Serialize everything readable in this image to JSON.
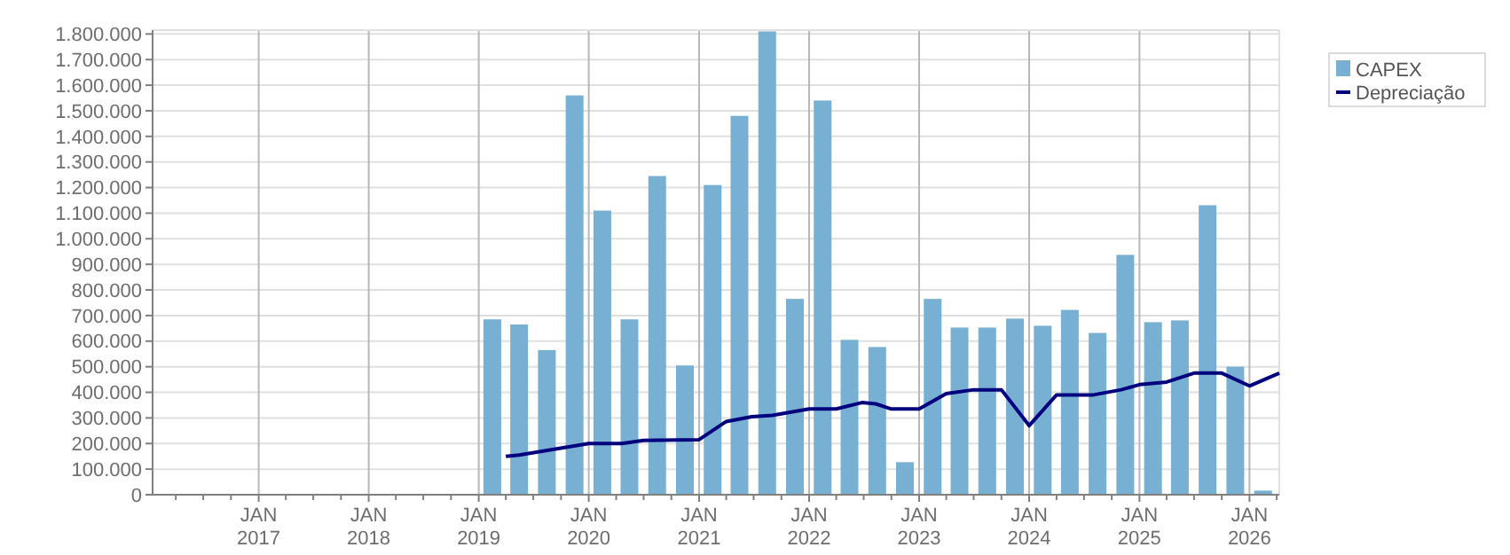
{
  "chart_data": {
    "type": "bar",
    "xlim": [
      "2016-01-15",
      "2026-04-10"
    ],
    "ylim": [
      0,
      1815000
    ],
    "x": [
      "2019-02-15",
      "2019-05-15",
      "2019-08-15",
      "2019-11-15",
      "2020-02-15",
      "2020-05-15",
      "2020-08-15",
      "2020-11-15",
      "2021-02-15",
      "2021-05-15",
      "2021-08-15",
      "2021-11-15",
      "2022-02-15",
      "2022-05-15",
      "2022-08-15",
      "2022-11-15",
      "2023-02-15",
      "2023-05-15",
      "2023-08-15",
      "2023-11-15",
      "2024-02-15",
      "2024-05-15",
      "2024-08-15",
      "2024-11-15",
      "2025-02-15",
      "2025-05-15",
      "2025-08-15",
      "2025-11-15",
      "2026-02-15"
    ],
    "series": [
      {
        "name": "CAPEX",
        "color": "#77b0d2",
        "values": [
          685000,
          665000,
          565000,
          1560000,
          1110000,
          685000,
          1245000,
          505000,
          1210000,
          1480000,
          1810000,
          765000,
          1540000,
          605000,
          577000,
          127000,
          765000,
          653000,
          653000,
          688000,
          660000,
          722000,
          632000,
          937000,
          674000,
          681000,
          1131000,
          500000,
          16000
        ]
      },
      {
        "name": "Depreciação",
        "type": "line",
        "color": "#00007f",
        "x": [
          "2019-04-01",
          "2019-05-15",
          "2020-01-01",
          "2020-04-20",
          "2020-07-01",
          "2021-01-01",
          "2021-04-01",
          "2021-06-25",
          "2021-09-01",
          "2022-01-01",
          "2022-04-01",
          "2022-06-25",
          "2022-08-10",
          "2022-10-01",
          "2023-01-01",
          "2023-04-01",
          "2023-07-01",
          "2023-10-01",
          "2024-01-01",
          "2024-04-01",
          "2024-08-01",
          "2024-11-01",
          "2025-01-01",
          "2025-04-01",
          "2025-07-01",
          "2025-10-01",
          "2026-01-01",
          "2026-04-10"
        ],
        "values": [
          150000,
          155000,
          200000,
          200000,
          212000,
          215000,
          286000,
          305000,
          310000,
          335000,
          335000,
          360000,
          355000,
          335000,
          335000,
          395000,
          410000,
          410000,
          270000,
          390000,
          390000,
          410000,
          430000,
          440000,
          475000,
          475000,
          425000,
          475000
        ]
      }
    ],
    "yticks": [
      {
        "value": 0,
        "label": "0"
      },
      {
        "value": 100000,
        "label": "100.000"
      },
      {
        "value": 200000,
        "label": "200.000"
      },
      {
        "value": 300000,
        "label": "300.000"
      },
      {
        "value": 400000,
        "label": "400.000"
      },
      {
        "value": 500000,
        "label": "500.000"
      },
      {
        "value": 600000,
        "label": "600.000"
      },
      {
        "value": 700000,
        "label": "700.000"
      },
      {
        "value": 800000,
        "label": "800.000"
      },
      {
        "value": 900000,
        "label": "900.000"
      },
      {
        "value": 1000000,
        "label": "1.000.000"
      },
      {
        "value": 1100000,
        "label": "1.100.000"
      },
      {
        "value": 1200000,
        "label": "1.200.000"
      },
      {
        "value": 1300000,
        "label": "1.300.000"
      },
      {
        "value": 1400000,
        "label": "1.400.000"
      },
      {
        "value": 1500000,
        "label": "1.500.000"
      },
      {
        "value": 1600000,
        "label": "1.600.000"
      },
      {
        "value": 1700000,
        "label": "1.700.000"
      },
      {
        "value": 1800000,
        "label": "1.800.000"
      }
    ],
    "xticks": [
      {
        "value": "2017-01-01",
        "label": "JAN\n2017"
      },
      {
        "value": "2018-01-01",
        "label": "JAN\n2018"
      },
      {
        "value": "2019-01-01",
        "label": "JAN\n2019"
      },
      {
        "value": "2020-01-01",
        "label": "JAN\n2020"
      },
      {
        "value": "2021-01-01",
        "label": "JAN\n2021"
      },
      {
        "value": "2022-01-01",
        "label": "JAN\n2022"
      },
      {
        "value": "2023-01-01",
        "label": "JAN\n2023"
      },
      {
        "value": "2024-01-01",
        "label": "JAN\n2024"
      },
      {
        "value": "2025-01-01",
        "label": "JAN\n2025"
      },
      {
        "value": "2026-01-01",
        "label": "JAN\n2026"
      }
    ],
    "grid": true,
    "legend": "top right"
  }
}
